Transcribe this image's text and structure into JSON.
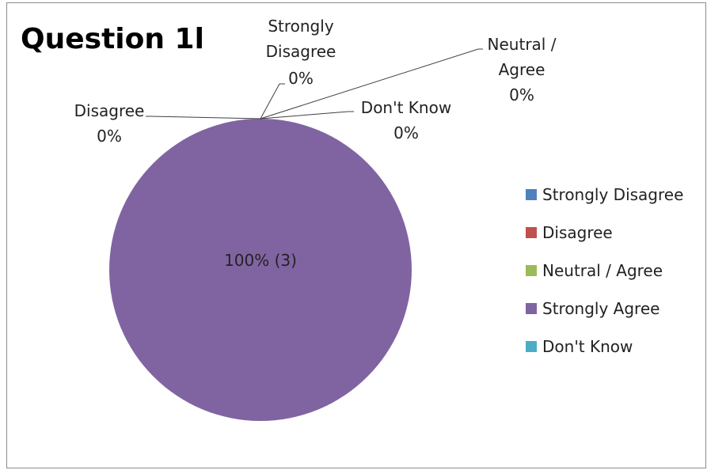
{
  "chart_data": {
    "type": "pie",
    "title": "Question 1l",
    "categories": [
      "Strongly Disagree",
      "Disagree",
      "Neutral / Agree",
      "Strongly Agree",
      "Don't Know"
    ],
    "values": [
      0,
      0,
      0,
      3,
      0
    ],
    "percent_labels": [
      "0%",
      "0%",
      "0%",
      "100% (3)",
      "0%"
    ],
    "colors": [
      "#4f81bd",
      "#c0504d",
      "#9bbb59",
      "#8064a2",
      "#4bacc6"
    ],
    "legend": "right"
  },
  "labels": {
    "strongly_disagree": [
      "Strongly",
      "Disagree",
      "0%"
    ],
    "neutral_agree": [
      "Neutral /",
      "Agree",
      "0%"
    ],
    "disagree": [
      "Disagree",
      "0%"
    ],
    "dont_know": [
      "Don't Know",
      "0%"
    ],
    "strongly_agree": "100% (3)"
  }
}
